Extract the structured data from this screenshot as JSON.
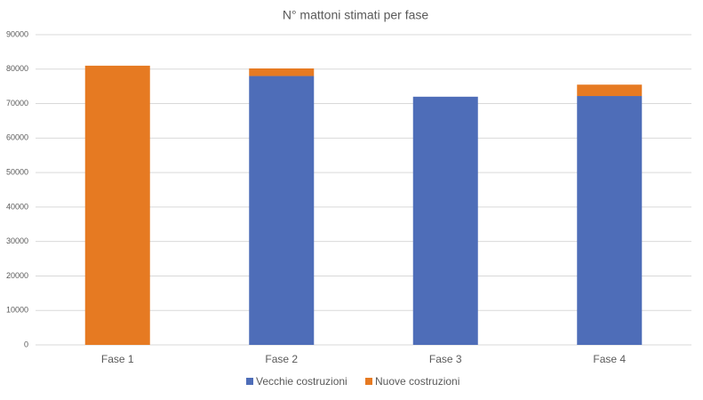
{
  "chart_data": {
    "type": "stacked_bar",
    "title": "N° mattoni stimati per fase",
    "categories": [
      "Fase 1",
      "Fase 2",
      "Fase 3",
      "Fase 4"
    ],
    "series": [
      {
        "name": "Vecchie costruzioni",
        "color": "#4e6db8",
        "values": [
          0,
          78000,
          72000,
          72200
        ]
      },
      {
        "name": "Nuove costruzioni",
        "color": "#e67a22",
        "values": [
          81000,
          2200,
          0,
          3300
        ]
      }
    ],
    "ylim": [
      0,
      90000
    ],
    "yticks": [
      0,
      10000,
      20000,
      30000,
      40000,
      50000,
      60000,
      70000,
      80000,
      90000
    ],
    "grid": true,
    "legend": "bottom"
  }
}
